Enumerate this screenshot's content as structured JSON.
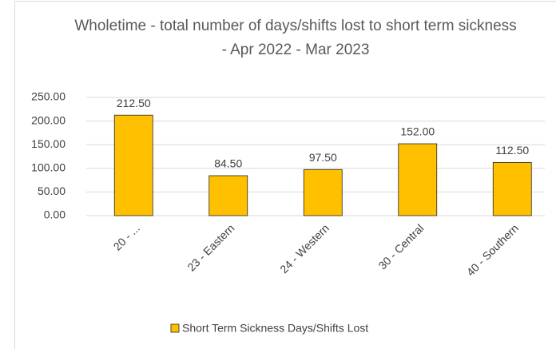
{
  "chart_data": {
    "type": "bar",
    "title": "Wholetime - total number of days/shifts lost to short term sickness - Apr 2022 - Mar 2023",
    "categories": [
      "20 - ...",
      "23 - Eastern",
      "24 - Western",
      "30 - Central",
      "40 - Southern"
    ],
    "series": [
      {
        "name": "Short Term Sickness Days/Shifts Lost",
        "color": "#ffc000",
        "values": [
          212.5,
          84.5,
          97.5,
          152,
          112.5
        ],
        "value_labels": [
          "212.50",
          "84.50",
          "97.50",
          "152.00",
          "112.50"
        ]
      }
    ],
    "ylim": [
      0,
      250
    ],
    "yticks": [
      {
        "value": 0,
        "label": "0.00"
      },
      {
        "value": 50,
        "label": "50.00"
      },
      {
        "value": 100,
        "label": "100.00"
      },
      {
        "value": 150,
        "label": "150.00"
      },
      {
        "value": 200,
        "label": "200.00"
      },
      {
        "value": 250,
        "label": "250.00"
      }
    ],
    "grid": true,
    "legend": "bottom"
  }
}
